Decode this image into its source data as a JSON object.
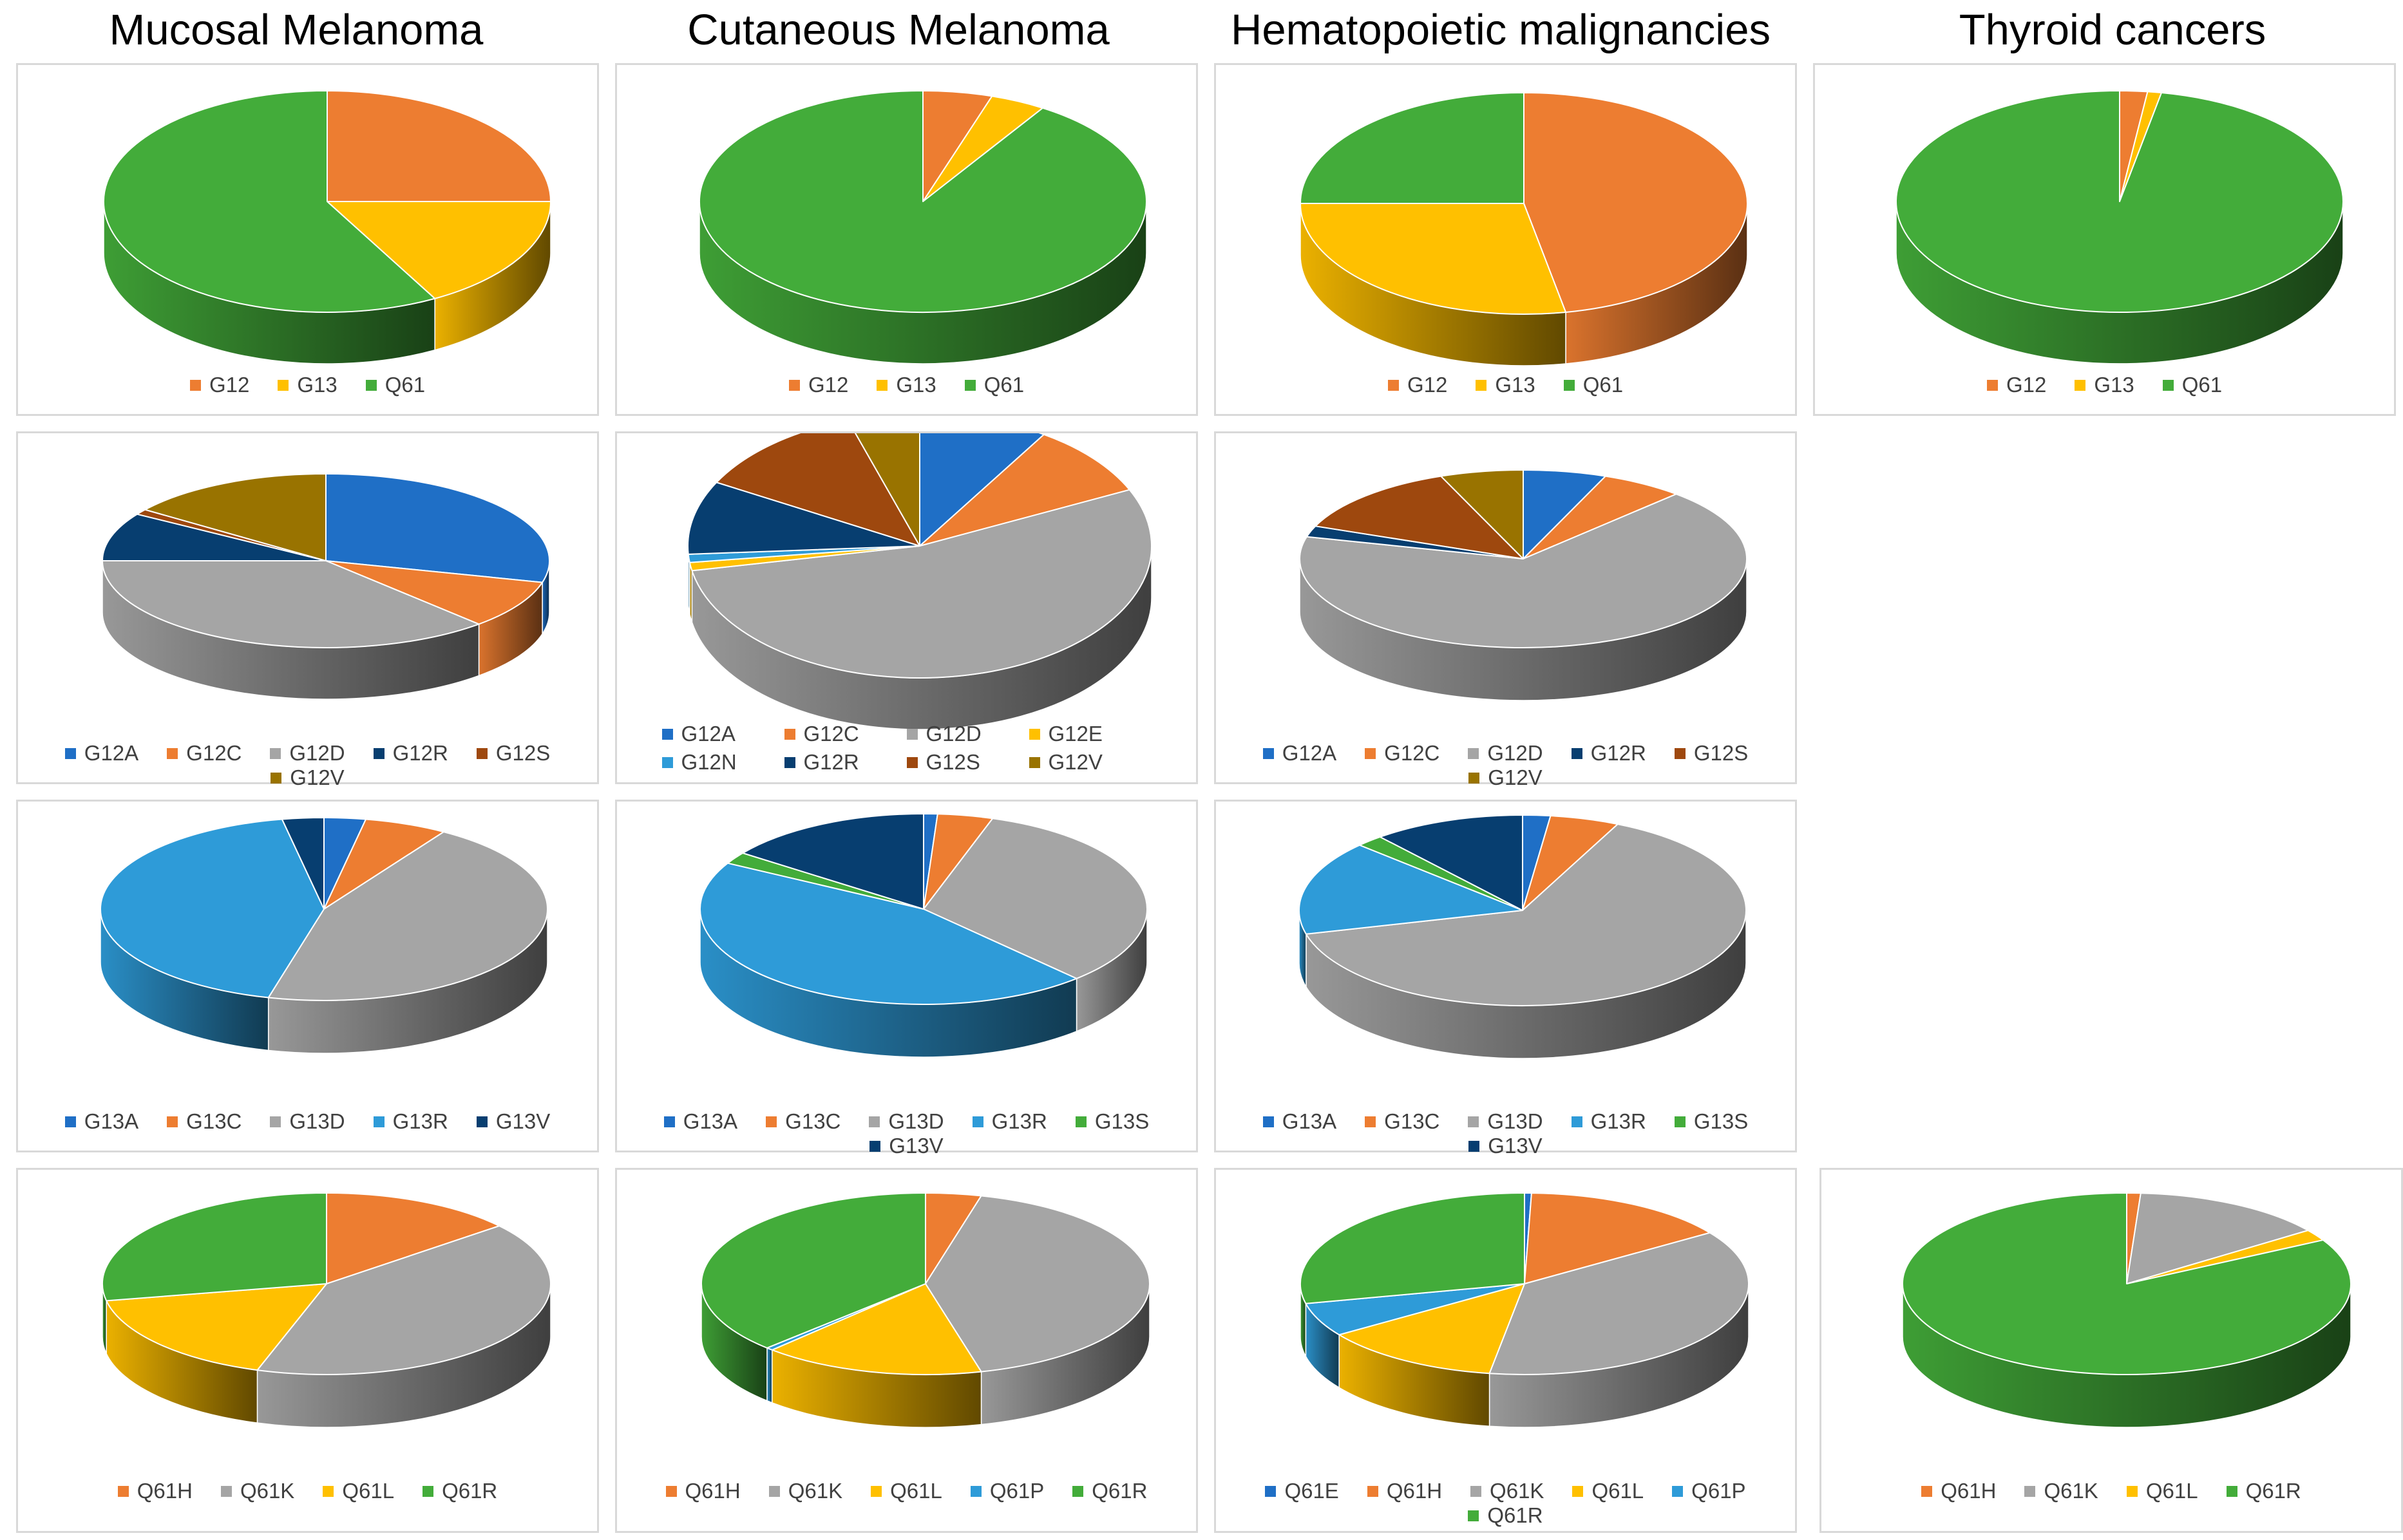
{
  "column_titles": [
    "Mucosal Melanoma",
    "Cutaneous Melanoma",
    "Hematopoietic malignancies",
    "Thyroid cancers"
  ],
  "chart_data": [
    {
      "id": "mucosal-codon",
      "type": "pie",
      "title": "Mucosal Melanoma",
      "categories": [
        "G12",
        "G13",
        "Q61"
      ],
      "values": [
        25,
        17,
        58
      ],
      "colors": [
        "#ED7D31",
        "#FFC000",
        "#43AC3A"
      ],
      "legend_cols": 0
    },
    {
      "id": "cutaneous-codon",
      "type": "pie",
      "title": "Cutaneous Melanoma",
      "categories": [
        "G12",
        "G13",
        "Q61"
      ],
      "values": [
        5,
        4,
        91
      ],
      "colors": [
        "#ED7D31",
        "#FFC000",
        "#43AC3A"
      ],
      "legend_cols": 0
    },
    {
      "id": "hematopoietic-codon",
      "type": "pie",
      "title": "Hematopoietic malignancies",
      "categories": [
        "G12",
        "G13",
        "Q61"
      ],
      "values": [
        47,
        28,
        25
      ],
      "colors": [
        "#ED7D31",
        "#FFC000",
        "#43AC3A"
      ],
      "legend_cols": 0
    },
    {
      "id": "thyroid-codon",
      "type": "pie",
      "title": "Thyroid cancers",
      "categories": [
        "G12",
        "G13",
        "Q61"
      ],
      "values": [
        2,
        1,
        97
      ],
      "colors": [
        "#ED7D31",
        "#FFC000",
        "#43AC3A"
      ],
      "legend_cols": 0
    },
    {
      "id": "mucosal-g12",
      "type": "pie",
      "title": "Mucosal Melanoma",
      "categories": [
        "G12A",
        "G12C",
        "G12D",
        "G12R",
        "G12S",
        "G12V"
      ],
      "values": [
        29,
        9,
        37,
        9,
        1,
        15
      ],
      "colors": [
        "#1F6FC6",
        "#ED7D31",
        "#A5A5A5",
        "#073E70",
        "#9E480E",
        "#997300"
      ],
      "legend_cols": 0
    },
    {
      "id": "cutaneous-g12",
      "type": "pie",
      "title": "Cutaneous Melanoma",
      "categories": [
        "G12A",
        "G12C",
        "G12D",
        "G12E",
        "G12N",
        "G12R",
        "G12S",
        "G12V"
      ],
      "values": [
        9,
        9,
        54,
        1,
        1,
        9,
        12,
        5
      ],
      "colors": [
        "#1F6FC6",
        "#ED7D31",
        "#A5A5A5",
        "#FFC000",
        "#2E9BD8",
        "#073E70",
        "#9E480E",
        "#997300"
      ],
      "legend_cols": 4
    },
    {
      "id": "hematopoietic-g12",
      "type": "pie",
      "title": "Hematopoietic malignancies",
      "categories": [
        "G12A",
        "G12C",
        "G12D",
        "G12R",
        "G12S",
        "G12V"
      ],
      "values": [
        6,
        6,
        67,
        2,
        13,
        6
      ],
      "colors": [
        "#1F6FC6",
        "#ED7D31",
        "#A5A5A5",
        "#073E70",
        "#9E480E",
        "#997300"
      ],
      "legend_cols": 0
    },
    {
      "id": "mucosal-g13",
      "type": "pie",
      "title": "Mucosal Melanoma",
      "categories": [
        "G13A",
        "G13C",
        "G13D",
        "G13R",
        "G13V"
      ],
      "values": [
        3,
        6,
        45,
        43,
        3
      ],
      "colors": [
        "#1F6FC6",
        "#ED7D31",
        "#A5A5A5",
        "#2E9BD8",
        "#073E70"
      ],
      "legend_cols": 0
    },
    {
      "id": "cutaneous-g13",
      "type": "pie",
      "title": "Cutaneous Melanoma",
      "categories": [
        "G13A",
        "G13C",
        "G13D",
        "G13R",
        "G13S",
        "G13V"
      ],
      "values": [
        1,
        4,
        33,
        45,
        2,
        15
      ],
      "colors": [
        "#1F6FC6",
        "#ED7D31",
        "#A5A5A5",
        "#2E9BD8",
        "#43AC3A",
        "#073E70"
      ],
      "legend_cols": 0
    },
    {
      "id": "hematopoietic-g13",
      "type": "pie",
      "title": "Hematopoietic malignancies",
      "categories": [
        "G13A",
        "G13C",
        "G13D",
        "G13R",
        "G13S",
        "G13V"
      ],
      "values": [
        2,
        5,
        64,
        16,
        2,
        11
      ],
      "colors": [
        "#1F6FC6",
        "#ED7D31",
        "#A5A5A5",
        "#2E9BD8",
        "#43AC3A",
        "#073E70"
      ],
      "legend_cols": 0
    },
    {
      "id": "mucosal-q61",
      "type": "pie",
      "title": "Mucosal Melanoma",
      "categories": [
        "Q61H",
        "Q61K",
        "Q61L",
        "Q61R"
      ],
      "values": [
        14,
        41,
        17,
        28
      ],
      "colors": [
        "#ED7D31",
        "#A5A5A5",
        "#FFC000",
        "#43AC3A"
      ],
      "legend_cols": 0
    },
    {
      "id": "cutaneous-q61",
      "type": "pie",
      "title": "Cutaneous Melanoma",
      "categories": [
        "Q61H",
        "Q61K",
        "Q61L",
        "Q61P",
        "Q61R"
      ],
      "values": [
        4,
        42,
        16,
        0.5,
        37.5
      ],
      "colors": [
        "#ED7D31",
        "#A5A5A5",
        "#FFC000",
        "#2E9BD8",
        "#43AC3A"
      ],
      "legend_cols": 0
    },
    {
      "id": "hematopoietic-q61",
      "type": "pie",
      "title": "Hematopoietic malignancies",
      "categories": [
        "Q61E",
        "Q61H",
        "Q61K",
        "Q61L",
        "Q61P",
        "Q61R"
      ],
      "values": [
        0.5,
        15,
        37,
        13,
        6,
        28.5
      ],
      "colors": [
        "#1F6FC6",
        "#ED7D31",
        "#A5A5A5",
        "#FFC000",
        "#2E9BD8",
        "#43AC3A"
      ],
      "legend_cols": 0
    },
    {
      "id": "thyroid-q61",
      "type": "pie",
      "title": "Thyroid cancers",
      "categories": [
        "Q61H",
        "Q61K",
        "Q61L",
        "Q61R"
      ],
      "values": [
        1,
        14,
        2,
        83
      ],
      "colors": [
        "#ED7D31",
        "#A5A5A5",
        "#FFC000",
        "#43AC3A"
      ],
      "legend_cols": 0
    }
  ]
}
